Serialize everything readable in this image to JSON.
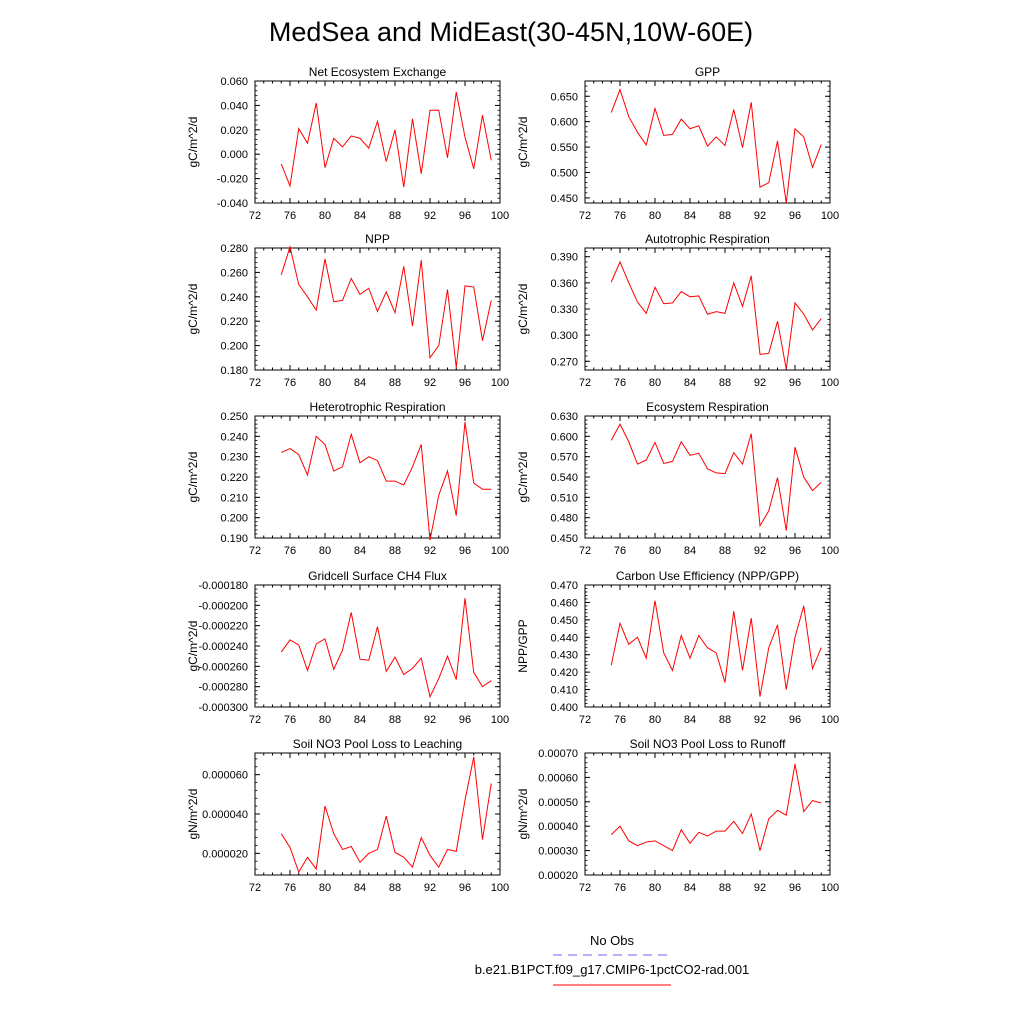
{
  "figure": {
    "title": "MedSea and MidEast(30-45N,10W-60E)",
    "legend": [
      {
        "label": "No Obs",
        "color": "#6666ff",
        "style": "dashed"
      },
      {
        "label": "b.e21.B1PCT.f09_g17.CMIP6-1pctCO2-rad.001",
        "color": "#ff0000",
        "style": "solid"
      }
    ]
  },
  "colors": {
    "series": "#ff0000",
    "obs": "#6666ff",
    "axes": "#000000"
  },
  "chart_data": [
    {
      "type": "line",
      "title": "Net Ecosystem Exchange",
      "ylabel": "gC/m^2/d",
      "xlim": [
        72,
        100
      ],
      "ylim": [
        -0.04,
        0.06
      ],
      "xticks": [
        "72",
        "76",
        "80",
        "84",
        "88",
        "92",
        "96",
        "100"
      ],
      "yticks": [
        "-0.040",
        "-0.020",
        "0.000",
        "0.020",
        "0.040",
        "0.060"
      ],
      "x": [
        75,
        76,
        77,
        78,
        79,
        80,
        81,
        82,
        83,
        84,
        85,
        86,
        87,
        88,
        89,
        90,
        91,
        92,
        93,
        94,
        95,
        96,
        97,
        98,
        99
      ],
      "series": [
        {
          "values": [
            -0.008,
            -0.026,
            0.021,
            0.009,
            0.042,
            -0.011,
            0.013,
            0.006,
            0.015,
            0.013,
            0.005,
            0.027,
            -0.006,
            0.02,
            -0.027,
            0.029,
            -0.016,
            0.036,
            0.036,
            -0.003,
            0.051,
            0.014,
            -0.012,
            0.032,
            -0.005
          ]
        }
      ]
    },
    {
      "type": "line",
      "title": "GPP",
      "ylabel": "gC/m^2/d",
      "xlim": [
        72,
        100
      ],
      "ylim": [
        0.44,
        0.68
      ],
      "xticks": [
        "72",
        "76",
        "80",
        "84",
        "88",
        "92",
        "96",
        "100"
      ],
      "yticks": [
        "0.450",
        "0.500",
        "0.550",
        "0.600",
        "0.650"
      ],
      "x": [
        75,
        76,
        77,
        78,
        79,
        80,
        81,
        82,
        83,
        84,
        85,
        86,
        87,
        88,
        89,
        90,
        91,
        92,
        93,
        94,
        95,
        96,
        97,
        98,
        99
      ],
      "series": [
        {
          "values": [
            0.618,
            0.663,
            0.61,
            0.579,
            0.554,
            0.626,
            0.573,
            0.575,
            0.605,
            0.586,
            0.592,
            0.552,
            0.57,
            0.553,
            0.624,
            0.549,
            0.638,
            0.471,
            0.48,
            0.562,
            0.44,
            0.586,
            0.57,
            0.51,
            0.555
          ]
        }
      ]
    },
    {
      "type": "line",
      "title": "NPP",
      "ylabel": "gC/m^2/d",
      "xlim": [
        72,
        100
      ],
      "ylim": [
        0.18,
        0.28
      ],
      "xticks": [
        "72",
        "76",
        "80",
        "84",
        "88",
        "92",
        "96",
        "100"
      ],
      "yticks": [
        "0.180",
        "0.200",
        "0.220",
        "0.240",
        "0.260",
        "0.280"
      ],
      "x": [
        75,
        76,
        77,
        78,
        79,
        80,
        81,
        82,
        83,
        84,
        85,
        86,
        87,
        88,
        89,
        90,
        91,
        92,
        93,
        94,
        95,
        96,
        97,
        98,
        99
      ],
      "series": [
        {
          "values": [
            0.258,
            0.281,
            0.25,
            0.24,
            0.229,
            0.271,
            0.236,
            0.237,
            0.255,
            0.242,
            0.247,
            0.228,
            0.244,
            0.227,
            0.265,
            0.216,
            0.27,
            0.19,
            0.2,
            0.246,
            0.182,
            0.249,
            0.248,
            0.204,
            0.237
          ]
        }
      ]
    },
    {
      "type": "line",
      "title": "Autotrophic Respiration",
      "ylabel": "gC/m^2/d",
      "xlim": [
        72,
        100
      ],
      "ylim": [
        0.26,
        0.4
      ],
      "xticks": [
        "72",
        "76",
        "80",
        "84",
        "88",
        "92",
        "96",
        "100"
      ],
      "yticks": [
        "0.270",
        "0.300",
        "0.330",
        "0.360",
        "0.390"
      ],
      "x": [
        75,
        76,
        77,
        78,
        79,
        80,
        81,
        82,
        83,
        84,
        85,
        86,
        87,
        88,
        89,
        90,
        91,
        92,
        93,
        94,
        95,
        96,
        97,
        98,
        99
      ],
      "series": [
        {
          "values": [
            0.361,
            0.384,
            0.36,
            0.338,
            0.325,
            0.355,
            0.336,
            0.337,
            0.35,
            0.344,
            0.345,
            0.324,
            0.327,
            0.325,
            0.36,
            0.333,
            0.368,
            0.278,
            0.279,
            0.316,
            0.261,
            0.337,
            0.324,
            0.306,
            0.319
          ]
        }
      ]
    },
    {
      "type": "line",
      "title": "Heterotrophic Respiration",
      "ylabel": "gC/m^2/d",
      "xlim": [
        72,
        100
      ],
      "ylim": [
        0.19,
        0.25
      ],
      "xticks": [
        "72",
        "76",
        "80",
        "84",
        "88",
        "92",
        "96",
        "100"
      ],
      "yticks": [
        "0.190",
        "0.200",
        "0.210",
        "0.220",
        "0.230",
        "0.240",
        "0.250"
      ],
      "x": [
        75,
        76,
        77,
        78,
        79,
        80,
        81,
        82,
        83,
        84,
        85,
        86,
        87,
        88,
        89,
        90,
        91,
        92,
        93,
        94,
        95,
        96,
        97,
        98,
        99
      ],
      "series": [
        {
          "values": [
            0.232,
            0.234,
            0.231,
            0.221,
            0.24,
            0.236,
            0.223,
            0.225,
            0.241,
            0.227,
            0.23,
            0.228,
            0.218,
            0.218,
            0.216,
            0.225,
            0.236,
            0.189,
            0.211,
            0.223,
            0.201,
            0.247,
            0.217,
            0.214,
            0.214
          ]
        }
      ]
    },
    {
      "type": "line",
      "title": "Ecosystem Respiration",
      "ylabel": "gC/m^2/d",
      "xlim": [
        72,
        100
      ],
      "ylim": [
        0.45,
        0.63
      ],
      "xticks": [
        "72",
        "76",
        "80",
        "84",
        "88",
        "92",
        "96",
        "100"
      ],
      "yticks": [
        "0.450",
        "0.480",
        "0.510",
        "0.540",
        "0.570",
        "0.600",
        "0.630"
      ],
      "x": [
        75,
        76,
        77,
        78,
        79,
        80,
        81,
        82,
        83,
        84,
        85,
        86,
        87,
        88,
        89,
        90,
        91,
        92,
        93,
        94,
        95,
        96,
        97,
        98,
        99
      ],
      "series": [
        {
          "values": [
            0.594,
            0.618,
            0.592,
            0.559,
            0.565,
            0.591,
            0.56,
            0.563,
            0.592,
            0.572,
            0.575,
            0.552,
            0.546,
            0.545,
            0.576,
            0.559,
            0.604,
            0.468,
            0.49,
            0.539,
            0.461,
            0.584,
            0.54,
            0.52,
            0.532
          ]
        }
      ]
    },
    {
      "type": "line",
      "title": "Gridcell Surface CH4 Flux",
      "ylabel": "gC/m^2/d",
      "xlim": [
        72,
        100
      ],
      "ylim": [
        -0.0003,
        -0.00018
      ],
      "xticks": [
        "72",
        "76",
        "80",
        "84",
        "88",
        "92",
        "96",
        "100"
      ],
      "yticks": [
        "-0.000300",
        "-0.000280",
        "-0.000260",
        "-0.000240",
        "-0.000220",
        "-0.000200",
        "-0.000180"
      ],
      "x": [
        75,
        76,
        77,
        78,
        79,
        80,
        81,
        82,
        83,
        84,
        85,
        86,
        87,
        88,
        89,
        90,
        91,
        92,
        93,
        94,
        95,
        96,
        97,
        98,
        99
      ],
      "series": [
        {
          "values": [
            -0.000246,
            -0.000234,
            -0.000239,
            -0.000264,
            -0.000238,
            -0.000233,
            -0.000263,
            -0.000244,
            -0.000207,
            -0.000253,
            -0.000254,
            -0.000221,
            -0.000265,
            -0.000251,
            -0.000268,
            -0.000262,
            -0.000252,
            -0.00029,
            -0.000272,
            -0.00025,
            -0.000273,
            -0.000193,
            -0.000266,
            -0.00028,
            -0.000274
          ]
        }
      ]
    },
    {
      "type": "line",
      "title": "Carbon Use Efficiency (NPP/GPP)",
      "ylabel": "NPP/GPP",
      "xlim": [
        72,
        100
      ],
      "ylim": [
        0.4,
        0.47
      ],
      "xticks": [
        "72",
        "76",
        "80",
        "84",
        "88",
        "92",
        "96",
        "100"
      ],
      "yticks": [
        "0.400",
        "0.410",
        "0.420",
        "0.430",
        "0.440",
        "0.450",
        "0.460",
        "0.470"
      ],
      "x": [
        75,
        76,
        77,
        78,
        79,
        80,
        81,
        82,
        83,
        84,
        85,
        86,
        87,
        88,
        89,
        90,
        91,
        92,
        93,
        94,
        95,
        96,
        97,
        98,
        99
      ],
      "series": [
        {
          "values": [
            0.424,
            0.448,
            0.436,
            0.44,
            0.428,
            0.461,
            0.431,
            0.421,
            0.441,
            0.428,
            0.441,
            0.434,
            0.431,
            0.414,
            0.455,
            0.421,
            0.451,
            0.406,
            0.434,
            0.447,
            0.41,
            0.44,
            0.458,
            0.422,
            0.434
          ]
        }
      ]
    },
    {
      "type": "line",
      "title": "Soil NO3 Pool Loss to Leaching",
      "ylabel": "gN/m^2/d",
      "xlim": [
        72,
        100
      ],
      "ylim": [
        9e-06,
        7.1e-05
      ],
      "xticks": [
        "72",
        "76",
        "80",
        "84",
        "88",
        "92",
        "96",
        "100"
      ],
      "yticks": [
        "0.000020",
        "0.000040",
        "0.000060"
      ],
      "ytick_values": [
        2e-05,
        4e-05,
        6e-05
      ],
      "x": [
        75,
        76,
        77,
        78,
        79,
        80,
        81,
        82,
        83,
        84,
        85,
        86,
        87,
        88,
        89,
        90,
        91,
        92,
        93,
        94,
        95,
        96,
        97,
        98,
        99
      ],
      "series": [
        {
          "values": [
            3e-05,
            2.3e-05,
            1.05e-05,
            1.8e-05,
            1.2e-05,
            4.4e-05,
            3e-05,
            2.2e-05,
            2.35e-05,
            1.55e-05,
            2e-05,
            2.2e-05,
            3.9e-05,
            2.05e-05,
            1.8e-05,
            1.3e-05,
            2.8e-05,
            1.9e-05,
            1.3e-05,
            2.2e-05,
            2.1e-05,
            4.7e-05,
            6.9e-05,
            2.7e-05,
            5.55e-05
          ]
        }
      ]
    },
    {
      "type": "line",
      "title": "Soil NO3 Pool Loss to Runoff",
      "ylabel": "gN/m^2/d",
      "xlim": [
        72,
        100
      ],
      "ylim": [
        0.0002,
        0.0007
      ],
      "xticks": [
        "72",
        "76",
        "80",
        "84",
        "88",
        "92",
        "96",
        "100"
      ],
      "yticks": [
        "0.00020",
        "0.00030",
        "0.00040",
        "0.00050",
        "0.00060",
        "0.00070"
      ],
      "x": [
        75,
        76,
        77,
        78,
        79,
        80,
        81,
        82,
        83,
        84,
        85,
        86,
        87,
        88,
        89,
        90,
        91,
        92,
        93,
        94,
        95,
        96,
        97,
        98,
        99
      ],
      "series": [
        {
          "values": [
            0.000365,
            0.0004,
            0.00034,
            0.00032,
            0.000335,
            0.00034,
            0.00032,
            0.0003,
            0.000385,
            0.00033,
            0.000375,
            0.00036,
            0.00038,
            0.00038,
            0.00042,
            0.00037,
            0.00045,
            0.0003,
            0.00043,
            0.000465,
            0.000445,
            0.000655,
            0.00046,
            0.000505,
            0.000495
          ]
        }
      ]
    }
  ]
}
